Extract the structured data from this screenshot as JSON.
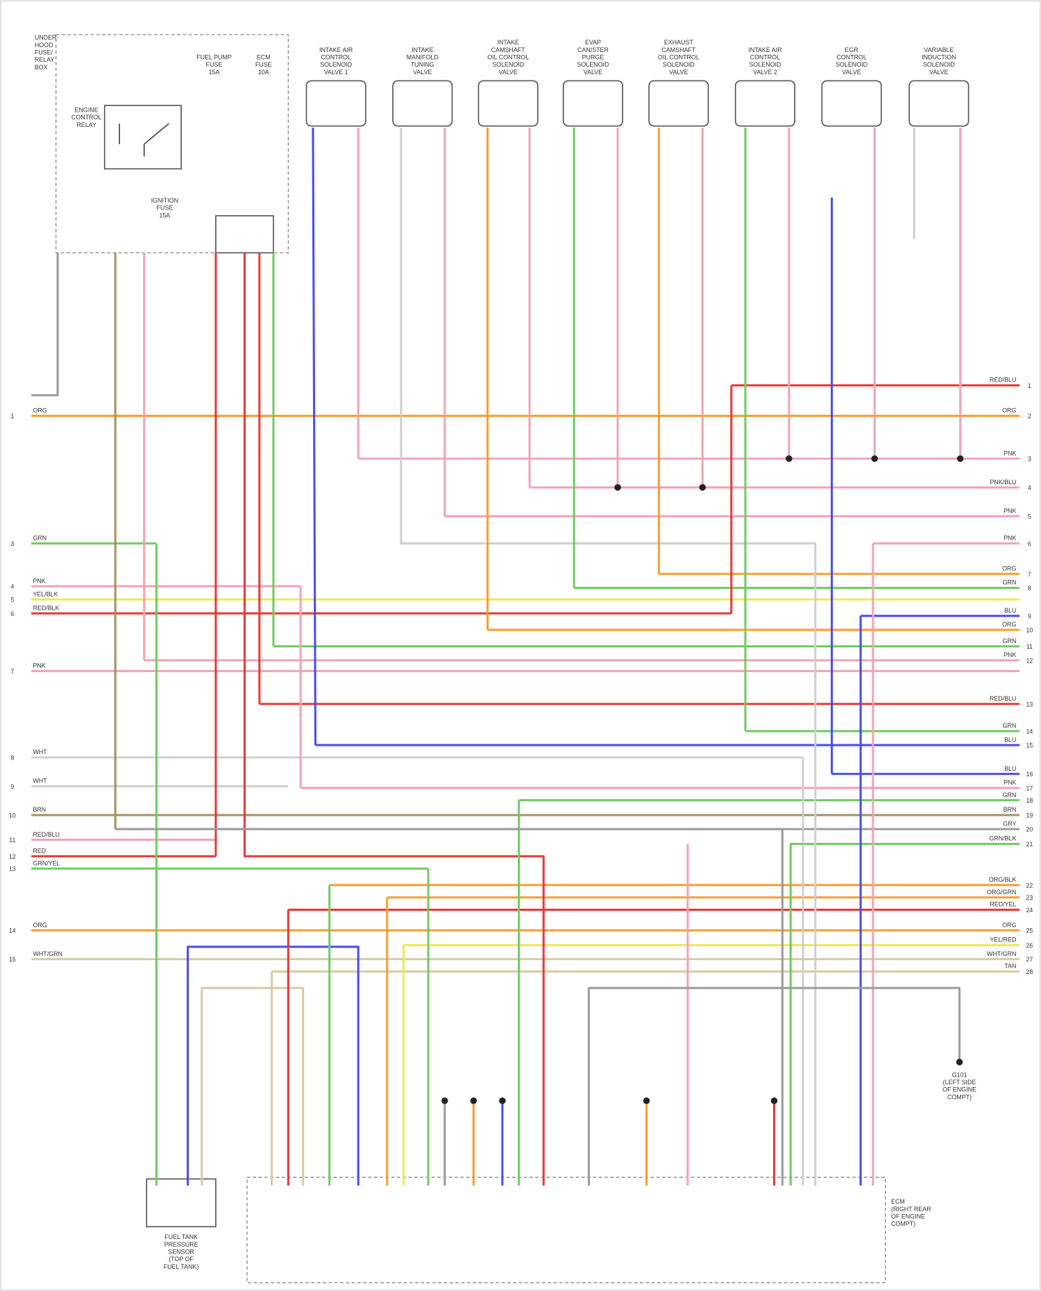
{
  "fuse_box": {
    "title": [
      "UNDER-",
      "HOOD",
      "FUSE/",
      "RELAY",
      "BOX"
    ],
    "relay": [
      "ENGINE",
      "CONTROL",
      "RELAY"
    ],
    "fuse_a": [
      "FUEL PUMP",
      "FUSE",
      "15A"
    ],
    "fuse_b": [
      "ECM",
      "FUSE",
      "10A"
    ],
    "fuse_c": [
      "IGNITION",
      "FUSE",
      "15A"
    ]
  },
  "components": [
    {
      "label": [
        "INTAKE AIR",
        "CONTROL",
        "SOLENOID",
        "VALVE 1"
      ]
    },
    {
      "label": [
        "INTAKE",
        "MANIFOLD",
        "TUNING",
        "VALVE"
      ]
    },
    {
      "label": [
        "INTAKE",
        "CAMSHAFT",
        "OIL CONTROL",
        "SOLENOID",
        "VALVE"
      ]
    },
    {
      "label": [
        "EVAP",
        "CANISTER",
        "PURGE",
        "SOLENOID",
        "VALVE"
      ]
    },
    {
      "label": [
        "EXHAUST",
        "CAMSHAFT",
        "OIL CONTROL",
        "SOLENOID",
        "VALVE"
      ]
    },
    {
      "label": [
        "INTAKE AIR",
        "CONTROL",
        "SOLENOID",
        "VALVE 2"
      ]
    },
    {
      "label": [
        "EGR",
        "CONTROL",
        "SOLENOID",
        "VALVE"
      ]
    },
    {
      "label": [
        "VARIABLE",
        "INDUCTION",
        "SOLENOID",
        "VALVE"
      ]
    }
  ],
  "right_wires": [
    {
      "pin": "1",
      "label": "RED/BLU"
    },
    {
      "pin": "2",
      "label": "ORG"
    },
    {
      "pin": "3",
      "label": "PNK"
    },
    {
      "pin": "4",
      "label": "PNK/BLU"
    },
    {
      "pin": "5",
      "label": "PNK"
    },
    {
      "pin": "6",
      "label": "PNK"
    },
    {
      "pin": "7",
      "label": "ORG"
    },
    {
      "pin": "8",
      "label": "GRN"
    },
    {
      "pin": "9",
      "label": "BLU"
    },
    {
      "pin": "10",
      "label": "ORG"
    },
    {
      "pin": "11",
      "label": "GRN"
    },
    {
      "pin": "12",
      "label": "PNK"
    },
    {
      "pin": "13",
      "label": "RED/BLU"
    },
    {
      "pin": "14",
      "label": "GRN"
    },
    {
      "pin": "15",
      "label": "BLU"
    },
    {
      "pin": "16",
      "label": "BLU"
    },
    {
      "pin": "17",
      "label": "PNK"
    },
    {
      "pin": "18",
      "label": "GRN"
    },
    {
      "pin": "19",
      "label": "BRN"
    },
    {
      "pin": "20",
      "label": "GRY"
    },
    {
      "pin": "21",
      "label": "GRN/BLK"
    },
    {
      "pin": "22",
      "label": "ORG/BLK"
    },
    {
      "pin": "23",
      "label": "ORG/GRN"
    },
    {
      "pin": "24",
      "label": "RED/YEL"
    },
    {
      "pin": "25",
      "label": "ORG"
    },
    {
      "pin": "26",
      "label": "YEL/RED"
    },
    {
      "pin": "27",
      "label": "WHT/GRN"
    },
    {
      "pin": "28",
      "label": "TAN"
    }
  ],
  "left_wires": [
    {
      "pin": "1",
      "label": "ORG"
    },
    {
      "pin": "3",
      "label": "GRN"
    },
    {
      "pin": "4",
      "label": "PNK"
    },
    {
      "pin": "5",
      "label": "YEL/BLK"
    },
    {
      "pin": "6",
      "label": "RED/BLK"
    },
    {
      "pin": "7",
      "label": "PNK"
    },
    {
      "pin": "8",
      "label": "WHT"
    },
    {
      "pin": "9",
      "label": "WHT"
    },
    {
      "pin": "10",
      "label": "BRN"
    },
    {
      "pin": "11",
      "label": "RED/BLU"
    },
    {
      "pin": "12",
      "label": "RED"
    },
    {
      "pin": "13",
      "label": "GRN/YEL"
    },
    {
      "pin": "14",
      "label": "ORG"
    },
    {
      "pin": "15",
      "label": "WHT/GRN"
    }
  ],
  "sensor": {
    "label": [
      "FUEL TANK",
      "PRESSURE",
      "SENSOR",
      "(TOP OF",
      "FUEL TANK)"
    ]
  },
  "ground": {
    "label": [
      "G101",
      "(LEFT SIDE",
      "OF ENGINE",
      "COMPT)"
    ]
  },
  "ecm": {
    "label": [
      "ECM",
      "(RIGHT REAR",
      "OF ENGINE",
      "COMPT)"
    ]
  }
}
